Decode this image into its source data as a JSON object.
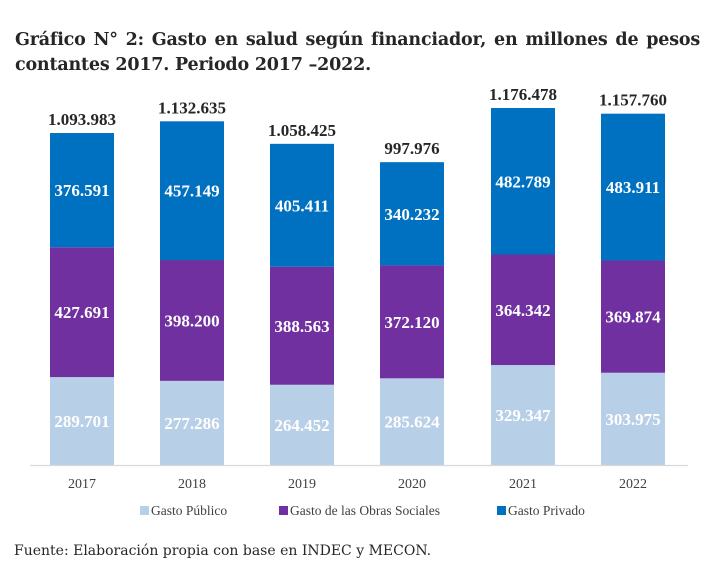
{
  "title": "Gráfico N° 2: Gasto en salud según financiador, en millones de pesos contantes 2017. Periodo 2017 –2022.",
  "source": "Fuente: Elaboración propia con base en INDEC y MECON.",
  "chart_data": {
    "type": "bar",
    "stacked": true,
    "title": "Gráfico N° 2: Gasto en salud según financiador, en millones de pesos contantes 2017. Periodo 2017 –2022.",
    "xlabel": "",
    "ylabel": "",
    "categories": [
      "2017",
      "2018",
      "2019",
      "2020",
      "2021",
      "2022"
    ],
    "series": [
      {
        "name": "Gasto Público",
        "color": "#B8CFE8",
        "values": [
          289701,
          277286,
          264452,
          285624,
          329347,
          303975
        ],
        "labels": [
          "289.701",
          "277.286",
          "264.452",
          "285.624",
          "329.347",
          "303.975"
        ]
      },
      {
        "name": "Gasto de las Obras Sociales",
        "color": "#7030A0",
        "values": [
          427691,
          398200,
          388563,
          372120,
          364342,
          369874
        ],
        "labels": [
          "427.691",
          "398.200",
          "388.563",
          "372.120",
          "364.342",
          "369.874"
        ]
      },
      {
        "name": "Gasto Privado",
        "color": "#0070C0",
        "values": [
          376591,
          457149,
          405411,
          340232,
          482789,
          483911
        ],
        "labels": [
          "376.591",
          "457.149",
          "405.411",
          "340.232",
          "482.789",
          "483.911"
        ]
      }
    ],
    "totals": [
      1093983,
      1132635,
      1058425,
      997976,
      1176478,
      1157760
    ],
    "total_labels": [
      "1.093.983",
      "1.132.635",
      "1.058.425",
      "997.976",
      "1.176.478",
      "1.157.760"
    ],
    "ylim": [
      0,
      1176478
    ],
    "grid": false,
    "legend": "bottom"
  }
}
